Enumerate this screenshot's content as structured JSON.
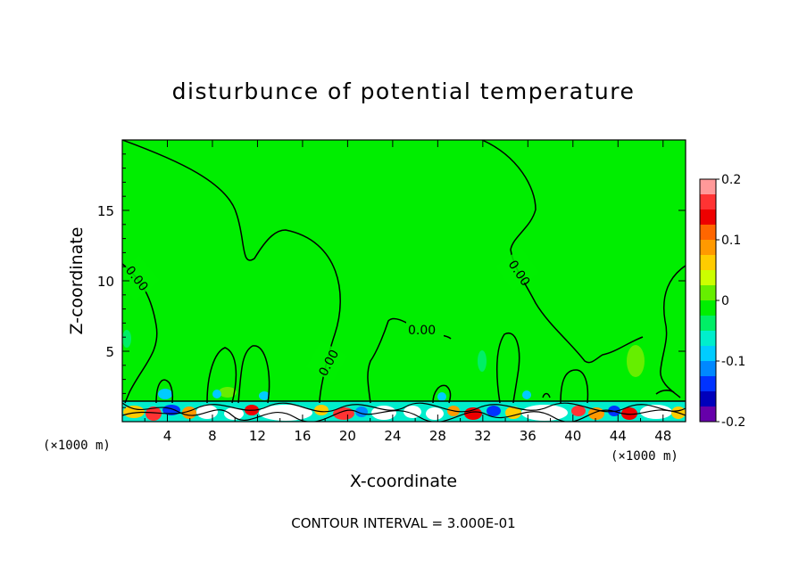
{
  "chart_data": {
    "type": "heatmap",
    "title": "disturbunce of potential temperature",
    "xlabel": "X-coordinate",
    "ylabel": "Z-coordinate",
    "x_unit": "(×1000 m)",
    "y_unit": "(×1000 m)",
    "xlim": [
      0,
      50
    ],
    "ylim": [
      0,
      20
    ],
    "x_ticks": [
      4,
      8,
      12,
      16,
      20,
      24,
      28,
      32,
      36,
      40,
      44,
      48
    ],
    "y_ticks": [
      5,
      10,
      15
    ],
    "colorbar": {
      "min": -0.2,
      "max": 0.2,
      "tick_values": [
        0.2,
        0.1,
        0,
        -0.1,
        -0.2
      ],
      "tick_labels": [
        "0.2",
        "0.1",
        "0",
        "-0.1",
        "-0.2"
      ],
      "colors": [
        "#ff9999",
        "#ff3333",
        "#ee0000",
        "#ff6600",
        "#ff9900",
        "#ffcc00",
        "#ccff00",
        "#66ee00",
        "#00ee00",
        "#00ee66",
        "#00eecc",
        "#00ccff",
        "#0088ff",
        "#0033ff",
        "#0000bb",
        "#6600aa"
      ]
    },
    "background_value": 0,
    "contour_labels": [
      {
        "text": "0.00",
        "x": 1.5,
        "z": 10.2
      },
      {
        "text": "0.00",
        "x": 18.7,
        "z": 4.1
      },
      {
        "text": "0.00",
        "x": 26.7,
        "z": 6.6
      },
      {
        "text": "0.00",
        "x": 34.5,
        "z": 10.7
      }
    ],
    "contour_interval_text": "CONTOUR INTERVAL = 3.000E-01",
    "grid": false,
    "legend": "colorbar right"
  }
}
